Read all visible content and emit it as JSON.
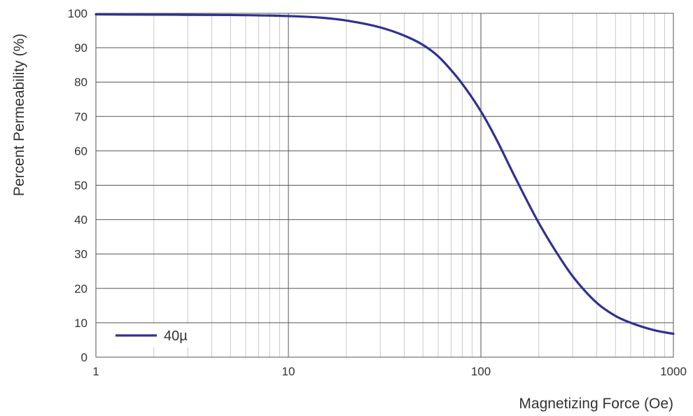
{
  "chart_data": {
    "type": "line",
    "title": "",
    "xlabel": "Magnetizing Force (Oe)",
    "ylabel": "Percent Permeability (%)",
    "xscale": "log",
    "xlim": [
      1,
      1000
    ],
    "ylim": [
      0,
      100
    ],
    "x_ticks": [
      1,
      10,
      100,
      1000
    ],
    "x_tick_labels": [
      "1",
      "10",
      "100",
      "1000"
    ],
    "y_ticks": [
      0,
      10,
      20,
      30,
      40,
      50,
      60,
      70,
      80,
      90,
      100
    ],
    "y_tick_labels": [
      "0",
      "10",
      "20",
      "30",
      "40",
      "50",
      "60",
      "70",
      "80",
      "90",
      "100"
    ],
    "grid": true,
    "legend": {
      "placement": "bottom-left"
    },
    "series": [
      {
        "name": "40µ",
        "color": "#2e3192",
        "x": [
          1,
          2,
          5,
          10,
          15,
          20,
          30,
          40,
          50,
          60,
          70,
          80,
          100,
          120,
          150,
          200,
          250,
          300,
          400,
          500,
          600,
          800,
          1000
        ],
        "y": [
          99.7,
          99.6,
          99.5,
          99.2,
          98.7,
          97.9,
          95.9,
          93.5,
          90.8,
          87.5,
          83.5,
          79.5,
          71.5,
          63.5,
          52.5,
          39.0,
          30.0,
          23.5,
          15.8,
          12.0,
          10.0,
          7.8,
          6.8
        ]
      }
    ]
  }
}
